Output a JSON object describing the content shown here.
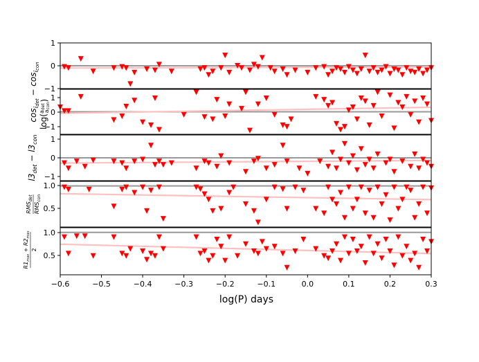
{
  "chart_data": {
    "type": "scatter",
    "xlabel": "log(P) days",
    "xlim": [
      -0.6,
      0.3
    ],
    "xticks": [
      "−0.6",
      "−0.5",
      "−0.4",
      "−0.3",
      "−0.2",
      "−0.1",
      "0.0",
      "0.1",
      "0.2",
      "0.3"
    ],
    "colors": {
      "points": "#ff0000",
      "reference_line": "#999999",
      "fit_line": "#ffc0c0"
    },
    "marker": "triangle-down",
    "panels": [
      {
        "ylabel": "log(a_det / a_con) cos i_det − cos i_con",
        "ylim": [
          -1.0,
          1.0
        ],
        "yticks": [
          "1",
          "0",
          "−1"
        ],
        "reference": 0.0,
        "fit": [
          -0.1,
          -0.05
        ],
        "points": [
          [
            -0.59,
            -0.05
          ],
          [
            -0.58,
            -0.1
          ],
          [
            -0.55,
            0.3
          ],
          [
            -0.52,
            -0.25
          ],
          [
            -0.47,
            -0.1
          ],
          [
            -0.45,
            -0.05
          ],
          [
            -0.44,
            -0.1
          ],
          [
            -0.43,
            -0.8
          ],
          [
            -0.42,
            -0.3
          ],
          [
            -0.39,
            -0.15
          ],
          [
            -0.37,
            -0.2
          ],
          [
            -0.36,
            0.05
          ],
          [
            -0.33,
            -0.25
          ],
          [
            -0.26,
            -0.15
          ],
          [
            -0.25,
            -0.1
          ],
          [
            -0.24,
            -0.4
          ],
          [
            -0.23,
            -0.25
          ],
          [
            -0.21,
            -0.1
          ],
          [
            -0.2,
            0.45
          ],
          [
            -0.19,
            -0.3
          ],
          [
            -0.17,
            0.0
          ],
          [
            -0.16,
            -0.1
          ],
          [
            -0.14,
            -0.2
          ],
          [
            -0.13,
            0.05
          ],
          [
            -0.12,
            -0.05
          ],
          [
            -0.11,
            0.35
          ],
          [
            -0.09,
            -0.1
          ],
          [
            -0.08,
            -0.25
          ],
          [
            -0.06,
            -0.15
          ],
          [
            -0.05,
            -0.4
          ],
          [
            -0.03,
            -0.2
          ],
          [
            0.0,
            -0.3
          ],
          [
            0.02,
            -0.1
          ],
          [
            0.04,
            -0.05
          ],
          [
            0.05,
            -0.4
          ],
          [
            0.06,
            -0.25
          ],
          [
            0.07,
            -0.1
          ],
          [
            0.08,
            -0.15
          ],
          [
            0.09,
            -0.3
          ],
          [
            0.1,
            -0.05
          ],
          [
            0.11,
            -0.2
          ],
          [
            0.12,
            -0.35
          ],
          [
            0.13,
            -0.15
          ],
          [
            0.14,
            0.45
          ],
          [
            0.15,
            -0.25
          ],
          [
            0.16,
            -0.1
          ],
          [
            0.17,
            -0.3
          ],
          [
            0.18,
            -0.2
          ],
          [
            0.19,
            -0.05
          ],
          [
            0.2,
            -0.35
          ],
          [
            0.21,
            -0.15
          ],
          [
            0.22,
            -0.2
          ],
          [
            0.23,
            -0.4
          ],
          [
            0.24,
            -0.1
          ],
          [
            0.25,
            -0.25
          ],
          [
            0.26,
            -0.3
          ],
          [
            0.27,
            -0.15
          ],
          [
            0.28,
            -0.35
          ],
          [
            0.29,
            -0.2
          ],
          [
            0.3,
            -0.1
          ]
        ]
      },
      {
        "ylabel": "log(q_det / q_con)",
        "ylim": [
          -1.5,
          1.5
        ],
        "yticks": [
          "1",
          "0",
          "−1"
        ],
        "reference": 0.0,
        "fit": [
          -0.1,
          0.3
        ],
        "points": [
          [
            -0.6,
            0.3
          ],
          [
            -0.59,
            0.05
          ],
          [
            -0.58,
            0.05
          ],
          [
            -0.55,
            1.0
          ],
          [
            -0.47,
            -0.55
          ],
          [
            -0.45,
            -0.3
          ],
          [
            -0.44,
            0.35
          ],
          [
            -0.42,
            0.75
          ],
          [
            -0.4,
            -0.7
          ],
          [
            -0.38,
            -0.9
          ],
          [
            -0.37,
            0.9
          ],
          [
            -0.36,
            -1.2
          ],
          [
            -0.3,
            -0.2
          ],
          [
            -0.27,
            1.3
          ],
          [
            -0.25,
            -0.35
          ],
          [
            -0.23,
            -0.5
          ],
          [
            -0.22,
            0.8
          ],
          [
            -0.2,
            -0.3
          ],
          [
            -0.19,
            0.5
          ],
          [
            -0.16,
            0.2
          ],
          [
            -0.15,
            1.3
          ],
          [
            -0.14,
            -1.25
          ],
          [
            -0.12,
            0.5
          ],
          [
            -0.1,
            0.9
          ],
          [
            -0.08,
            -0.2
          ],
          [
            -0.06,
            -0.9
          ],
          [
            -0.05,
            -1.0
          ],
          [
            -0.04,
            -0.5
          ],
          [
            0.02,
            1.0
          ],
          [
            0.04,
            0.8
          ],
          [
            0.05,
            0.4
          ],
          [
            0.06,
            0.6
          ],
          [
            0.07,
            -0.8
          ],
          [
            0.08,
            -1.2
          ],
          [
            0.09,
            -1.0
          ],
          [
            0.1,
            0.1
          ],
          [
            0.11,
            0.3
          ],
          [
            0.12,
            -0.5
          ],
          [
            0.13,
            0.9
          ],
          [
            0.14,
            0.7
          ],
          [
            0.15,
            -0.9
          ],
          [
            0.16,
            0.4
          ],
          [
            0.17,
            1.3
          ],
          [
            0.18,
            -0.3
          ],
          [
            0.2,
            1.1
          ],
          [
            0.21,
            -1.1
          ],
          [
            0.22,
            0.6
          ],
          [
            0.23,
            0.3
          ],
          [
            0.24,
            1.0
          ],
          [
            0.25,
            -0.2
          ],
          [
            0.26,
            0.7
          ],
          [
            0.27,
            -0.7
          ],
          [
            0.28,
            0.9
          ],
          [
            0.29,
            0.5
          ],
          [
            0.3,
            -0.6
          ]
        ]
      },
      {
        "ylabel": "l3_det − l3_con",
        "ylim": [
          -1.3,
          1.3
        ],
        "yticks": [
          "1",
          "0",
          "−1"
        ],
        "reference": 0.0,
        "fit": [
          -0.3,
          -0.15
        ],
        "points": [
          [
            -0.59,
            -0.3
          ],
          [
            -0.58,
            -0.6
          ],
          [
            -0.56,
            -0.2
          ],
          [
            -0.54,
            -0.5
          ],
          [
            -0.52,
            -0.15
          ],
          [
            -0.47,
            -0.2
          ],
          [
            -0.45,
            -0.3
          ],
          [
            -0.44,
            -0.6
          ],
          [
            -0.42,
            -0.2
          ],
          [
            -0.4,
            -0.1
          ],
          [
            -0.38,
            0.7
          ],
          [
            -0.37,
            -0.4
          ],
          [
            -0.36,
            -0.2
          ],
          [
            -0.35,
            -0.4
          ],
          [
            -0.33,
            -0.3
          ],
          [
            -0.27,
            -0.6
          ],
          [
            -0.25,
            -0.2
          ],
          [
            -0.24,
            -0.3
          ],
          [
            -0.22,
            -0.5
          ],
          [
            -0.21,
            0.1
          ],
          [
            -0.19,
            -0.3
          ],
          [
            -0.15,
            -0.8
          ],
          [
            -0.13,
            -0.2
          ],
          [
            -0.12,
            -0.05
          ],
          [
            -0.1,
            -0.6
          ],
          [
            -0.08,
            -0.4
          ],
          [
            -0.06,
            0.7
          ],
          [
            -0.05,
            -0.2
          ],
          [
            -0.02,
            -0.6
          ],
          [
            0.0,
            -0.9
          ],
          [
            0.03,
            -0.2
          ],
          [
            0.05,
            -0.5
          ],
          [
            0.06,
            0.3
          ],
          [
            0.07,
            -0.6
          ],
          [
            0.08,
            -0.1
          ],
          [
            0.09,
            0.8
          ],
          [
            0.1,
            -0.3
          ],
          [
            0.11,
            0.1
          ],
          [
            0.12,
            -0.7
          ],
          [
            0.13,
            0.5
          ],
          [
            0.14,
            -0.4
          ],
          [
            0.15,
            -0.1
          ],
          [
            0.16,
            -0.6
          ],
          [
            0.17,
            0.2
          ],
          [
            0.19,
            -0.3
          ],
          [
            0.2,
            -0.1
          ],
          [
            0.21,
            -0.8
          ],
          [
            0.23,
            -0.2
          ],
          [
            0.25,
            -0.5
          ],
          [
            0.26,
            0.2
          ],
          [
            0.27,
            -0.6
          ],
          [
            0.28,
            -0.1
          ],
          [
            0.29,
            -0.3
          ],
          [
            0.3,
            -0.5
          ]
        ]
      },
      {
        "ylabel": "RMS_det / RMS_con",
        "ylim": [
          0.1,
          1.1
        ],
        "yticks": [
          "1.0",
          "0.5"
        ],
        "reference": 1.0,
        "fit": [
          0.83,
          0.7
        ],
        "points": [
          [
            -0.59,
            0.97
          ],
          [
            -0.58,
            0.92
          ],
          [
            -0.53,
            0.92
          ],
          [
            -0.47,
            0.55
          ],
          [
            -0.45,
            0.92
          ],
          [
            -0.44,
            0.97
          ],
          [
            -0.42,
            0.85
          ],
          [
            -0.4,
            0.97
          ],
          [
            -0.39,
            0.45
          ],
          [
            -0.38,
            0.9
          ],
          [
            -0.36,
            0.97
          ],
          [
            -0.35,
            0.28
          ],
          [
            -0.27,
            0.97
          ],
          [
            -0.26,
            0.93
          ],
          [
            -0.25,
            0.82
          ],
          [
            -0.24,
            0.7
          ],
          [
            -0.23,
            0.45
          ],
          [
            -0.21,
            0.5
          ],
          [
            -0.19,
            0.85
          ],
          [
            -0.18,
            0.97
          ],
          [
            -0.15,
            0.6
          ],
          [
            -0.13,
            0.45
          ],
          [
            -0.12,
            0.2
          ],
          [
            -0.1,
            0.7
          ],
          [
            -0.08,
            0.97
          ],
          [
            -0.06,
            0.93
          ],
          [
            -0.05,
            0.5
          ],
          [
            -0.03,
            0.97
          ],
          [
            -0.01,
            0.9
          ],
          [
            0.02,
            0.5
          ],
          [
            0.04,
            0.4
          ],
          [
            0.05,
            0.97
          ],
          [
            0.06,
            0.7
          ],
          [
            0.07,
            0.6
          ],
          [
            0.08,
            0.85
          ],
          [
            0.09,
            0.3
          ],
          [
            0.1,
            0.97
          ],
          [
            0.11,
            0.5
          ],
          [
            0.12,
            0.7
          ],
          [
            0.13,
            0.97
          ],
          [
            0.14,
            0.4
          ],
          [
            0.15,
            0.9
          ],
          [
            0.16,
            0.3
          ],
          [
            0.17,
            0.97
          ],
          [
            0.18,
            0.6
          ],
          [
            0.19,
            0.8
          ],
          [
            0.2,
            0.25
          ],
          [
            0.21,
            0.97
          ],
          [
            0.22,
            0.5
          ],
          [
            0.23,
            0.7
          ],
          [
            0.24,
            0.97
          ],
          [
            0.25,
            0.9
          ],
          [
            0.26,
            0.3
          ],
          [
            0.27,
            0.6
          ],
          [
            0.28,
            0.97
          ],
          [
            0.29,
            0.4
          ],
          [
            0.3,
            0.95
          ]
        ]
      },
      {
        "ylabel": "(R1_max + R2_max) / 2",
        "ylim": [
          0.1,
          1.1
        ],
        "yticks": [
          "1.0",
          "0.5"
        ],
        "reference": 1.0,
        "fit": [
          0.75,
          0.55
        ],
        "points": [
          [
            -0.59,
            0.9
          ],
          [
            -0.58,
            0.55
          ],
          [
            -0.56,
            0.92
          ],
          [
            -0.54,
            0.92
          ],
          [
            -0.52,
            0.5
          ],
          [
            -0.47,
            0.9
          ],
          [
            -0.45,
            0.55
          ],
          [
            -0.44,
            0.5
          ],
          [
            -0.43,
            0.65
          ],
          [
            -0.4,
            0.6
          ],
          [
            -0.39,
            0.42
          ],
          [
            -0.38,
            0.55
          ],
          [
            -0.37,
            0.5
          ],
          [
            -0.36,
            0.9
          ],
          [
            -0.35,
            0.65
          ],
          [
            -0.27,
            0.9
          ],
          [
            -0.26,
            0.55
          ],
          [
            -0.25,
            0.6
          ],
          [
            -0.24,
            0.4
          ],
          [
            -0.23,
            0.5
          ],
          [
            -0.22,
            0.85
          ],
          [
            -0.21,
            0.7
          ],
          [
            -0.2,
            0.4
          ],
          [
            -0.19,
            0.9
          ],
          [
            -0.17,
            0.5
          ],
          [
            -0.15,
            0.75
          ],
          [
            -0.13,
            0.6
          ],
          [
            -0.12,
            0.55
          ],
          [
            -0.11,
            0.8
          ],
          [
            -0.1,
            0.65
          ],
          [
            -0.08,
            0.7
          ],
          [
            -0.06,
            0.55
          ],
          [
            -0.05,
            0.25
          ],
          [
            -0.03,
            0.6
          ],
          [
            -0.01,
            0.85
          ],
          [
            0.02,
            0.65
          ],
          [
            0.04,
            0.5
          ],
          [
            0.05,
            0.45
          ],
          [
            0.06,
            0.6
          ],
          [
            0.07,
            0.75
          ],
          [
            0.08,
            0.4
          ],
          [
            0.09,
            0.9
          ],
          [
            0.1,
            0.55
          ],
          [
            0.11,
            0.85
          ],
          [
            0.12,
            0.6
          ],
          [
            0.13,
            0.7
          ],
          [
            0.14,
            0.35
          ],
          [
            0.15,
            0.9
          ],
          [
            0.16,
            0.55
          ],
          [
            0.17,
            0.75
          ],
          [
            0.18,
            0.45
          ],
          [
            0.19,
            0.85
          ],
          [
            0.2,
            0.6
          ],
          [
            0.21,
            0.3
          ],
          [
            0.22,
            0.9
          ],
          [
            0.23,
            0.5
          ],
          [
            0.24,
            0.7
          ],
          [
            0.25,
            0.4
          ],
          [
            0.26,
            0.55
          ],
          [
            0.27,
            0.25
          ],
          [
            0.28,
            0.85
          ],
          [
            0.29,
            0.6
          ],
          [
            0.3,
            0.8
          ]
        ]
      }
    ]
  }
}
